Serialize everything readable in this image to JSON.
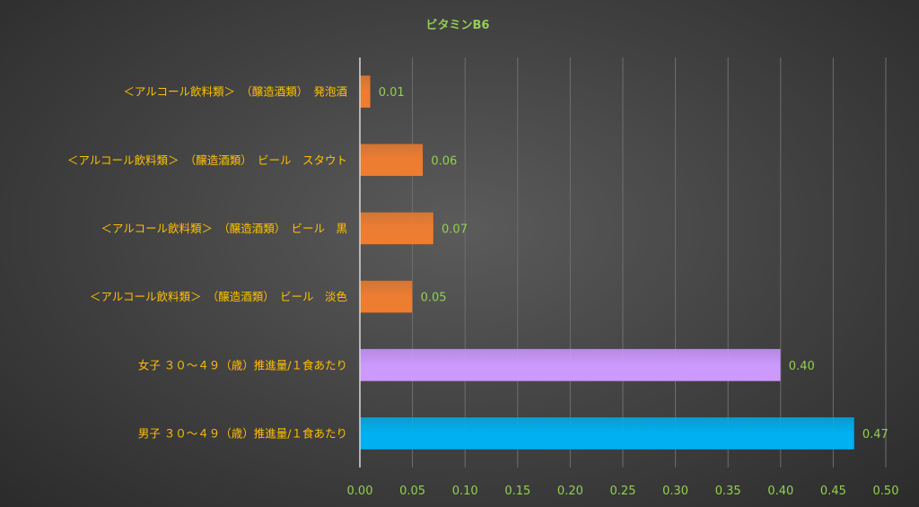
{
  "chart_data": {
    "type": "bar",
    "orientation": "horizontal",
    "title": "ビタミンB6",
    "categories": [
      "＜アルコール飲料類＞　（醸造酒類）　発泡酒",
      "＜アルコール飲料類＞　（醸造酒類）　ビール　スタウト",
      "＜アルコール飲料類＞　（醸造酒類）　ビール　黒",
      "＜アルコール飲料類＞　（醸造酒類）　ビール　淡色",
      "女子 ３０～４９（歳）推進量/１食あたり",
      "男子 ３０～４９（歳）推進量/１食あたり"
    ],
    "values": [
      0.01,
      0.06,
      0.07,
      0.05,
      0.4,
      0.47
    ],
    "value_labels": [
      "0.01",
      "0.06",
      "0.07",
      "0.05",
      "0.40",
      "0.47"
    ],
    "bar_colors": [
      "#ed7d31",
      "#ed7d31",
      "#ed7d31",
      "#ed7d31",
      "#cc99ff",
      "#00b0f0"
    ],
    "xlim": [
      0,
      0.5
    ],
    "x_ticks": [
      "0.00",
      "0.05",
      "0.10",
      "0.15",
      "0.20",
      "0.25",
      "0.30",
      "0.35",
      "0.40",
      "0.45",
      "0.50"
    ],
    "grid": "vertical",
    "legend": "none",
    "xlabel": "",
    "ylabel": ""
  },
  "colors": {
    "title": "#92d050",
    "category_text": "#ffc000",
    "tick_text": "#92d050",
    "data_label": "#92d050",
    "grid": "#6e6e6e",
    "axis": "#d9d9d9"
  }
}
